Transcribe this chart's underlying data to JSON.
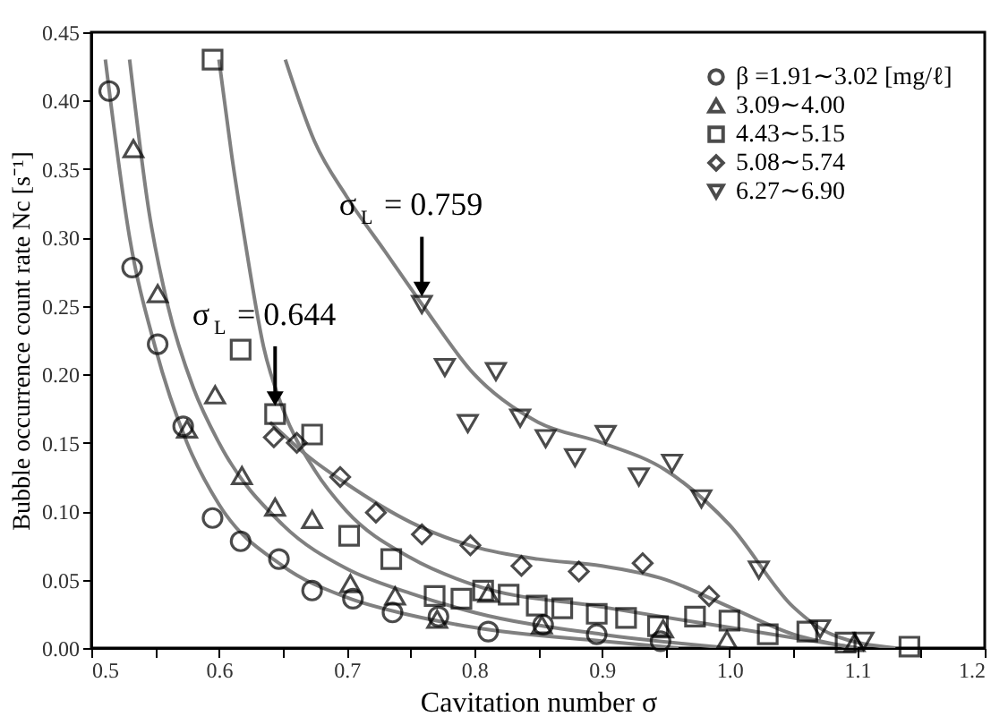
{
  "chart_data": {
    "type": "scatter",
    "xlabel": "Cavitation number σ",
    "ylabel": "Bubble occurrence count rate Nc [s⁻¹]",
    "xlim": [
      0.5,
      1.2
    ],
    "ylim": [
      0,
      0.45
    ],
    "xticks": [
      0.5,
      {
        "value": 0.55,
        "label": null
      },
      0.6,
      {
        "value": 0.65,
        "label": null
      },
      0.7,
      {
        "value": 0.75,
        "label": null
      },
      0.8,
      {
        "value": 0.85,
        "label": null
      },
      0.9,
      {
        "value": 0.95,
        "label": null
      },
      {
        "value": 1.0,
        "label": "1.0"
      },
      {
        "value": 1.05,
        "label": null
      },
      1.1,
      {
        "value": 1.15,
        "label": null
      },
      1.2
    ],
    "yticks": [
      {
        "value": 0,
        "label": "0.00"
      },
      0.05,
      {
        "value": 0.1,
        "label": "0.10"
      },
      0.15,
      {
        "value": 0.2,
        "label": "0.20"
      },
      0.25,
      {
        "value": 0.3,
        "label": "0.30"
      },
      0.35,
      {
        "value": 0.4,
        "label": "0.40"
      },
      0.45
    ],
    "grid": false,
    "legend": "top right",
    "series": [
      {
        "name": "β =1.91∼3.02 [mg/ℓ]",
        "color": "#000000",
        "marker": "circle",
        "x": [
          0.514,
          0.532,
          0.552,
          0.572,
          0.595,
          0.617,
          0.647,
          0.673,
          0.705,
          0.736,
          0.772,
          0.811,
          0.854,
          0.896,
          0.946
        ],
        "values": [
          0.407,
          0.278,
          0.222,
          0.162,
          0.095,
          0.078,
          0.065,
          0.042,
          0.036,
          0.026,
          0.023,
          0.012,
          0.017,
          0.01,
          0.005
        ]
      },
      {
        "name": "3.09∼4.00",
        "color": "#000000",
        "marker": "triangle",
        "x": [
          0.533,
          0.552,
          0.575,
          0.597,
          0.618,
          0.644,
          0.673,
          0.703,
          0.738,
          0.771,
          0.811,
          0.853,
          0.948,
          0.998,
          1.098
        ],
        "values": [
          0.365,
          0.259,
          0.16,
          0.185,
          0.126,
          0.103,
          0.094,
          0.047,
          0.038,
          0.021,
          0.04,
          0.017,
          0.014,
          0.006,
          0.004
        ]
      },
      {
        "name": "4.43∼5.15",
        "color": "#000000",
        "marker": "square",
        "x": [
          0.595,
          0.617,
          0.644,
          0.673,
          0.702,
          0.735,
          0.769,
          0.79,
          0.807,
          0.827,
          0.849,
          0.869,
          0.896,
          0.919,
          0.944,
          0.973,
          1.0,
          1.03,
          1.061,
          1.091,
          1.141
        ],
        "values": [
          0.43,
          0.218,
          0.171,
          0.156,
          0.082,
          0.065,
          0.038,
          0.036,
          0.042,
          0.039,
          0.031,
          0.029,
          0.025,
          0.022,
          0.016,
          0.023,
          0.02,
          0.01,
          0.012,
          0.004,
          0.001
        ]
      },
      {
        "name": "5.08∼5.74",
        "color": "#000000",
        "marker": "diamond",
        "x": [
          0.643,
          0.661,
          0.695,
          0.723,
          0.759,
          0.797,
          0.837,
          0.882,
          0.932,
          0.984
        ],
        "values": [
          0.154,
          0.15,
          0.125,
          0.099,
          0.083,
          0.075,
          0.06,
          0.056,
          0.062,
          0.038
        ]
      },
      {
        "name": "6.27∼6.90",
        "color": "#000000",
        "marker": "triangle-down",
        "x": [
          0.759,
          0.777,
          0.795,
          0.817,
          0.836,
          0.856,
          0.879,
          0.903,
          0.929,
          0.955,
          0.978,
          1.023,
          1.071,
          1.105
        ],
        "values": [
          0.251,
          0.205,
          0.164,
          0.202,
          0.168,
          0.153,
          0.139,
          0.156,
          0.125,
          0.135,
          0.109,
          0.057,
          0.014,
          0.005
        ]
      },
      {
        "type": "line",
        "color": "#808080",
        "marker": "none",
        "x": [
          0.511,
          0.53,
          0.55,
          0.575,
          0.6,
          0.65,
          0.7,
          0.75,
          0.8,
          0.9,
          0.96
        ],
        "values": [
          0.43,
          0.3,
          0.22,
          0.15,
          0.105,
          0.06,
          0.037,
          0.024,
          0.015,
          0.005,
          0.0
        ]
      },
      {
        "type": "line",
        "color": "#808080",
        "marker": "none",
        "x": [
          0.53,
          0.545,
          0.56,
          0.58,
          0.6,
          0.65,
          0.7,
          0.75,
          0.8,
          0.9,
          1.0
        ],
        "values": [
          0.43,
          0.32,
          0.25,
          0.19,
          0.15,
          0.09,
          0.058,
          0.04,
          0.026,
          0.01,
          0.0
        ]
      },
      {
        "type": "line",
        "color": "#808080",
        "marker": "none",
        "x": [
          0.6,
          0.61,
          0.62,
          0.635,
          0.65,
          0.675,
          0.7,
          0.75,
          0.8,
          0.9,
          1.0,
          1.1
        ],
        "values": [
          0.43,
          0.36,
          0.3,
          0.22,
          0.175,
          0.13,
          0.1,
          0.066,
          0.046,
          0.03,
          0.015,
          0.0
        ]
      },
      {
        "type": "line",
        "color": "#808080",
        "marker": "none",
        "x": [
          0.64,
          0.67,
          0.7,
          0.75,
          0.8,
          0.85,
          0.9,
          0.95,
          1.0,
          1.05,
          1.1
        ],
        "values": [
          0.165,
          0.14,
          0.12,
          0.092,
          0.074,
          0.065,
          0.06,
          0.05,
          0.03,
          0.01,
          0.0
        ]
      },
      {
        "type": "line",
        "color": "#808080",
        "marker": "none",
        "x": [
          0.652,
          0.675,
          0.7,
          0.73,
          0.76,
          0.8,
          0.85,
          0.9,
          0.95,
          1.0,
          1.05,
          1.08,
          1.13
        ],
        "values": [
          0.43,
          0.37,
          0.33,
          0.29,
          0.25,
          0.2,
          0.165,
          0.15,
          0.13,
          0.09,
          0.03,
          0.01,
          0.0
        ]
      }
    ],
    "annotations": [
      {
        "text": "σ$_{L}$ = 0.759",
        "x": 0.759,
        "y": 0.251
      },
      {
        "text": "σ$_{L}$ = 0.644",
        "x": 0.644,
        "y": 0.171
      }
    ]
  }
}
